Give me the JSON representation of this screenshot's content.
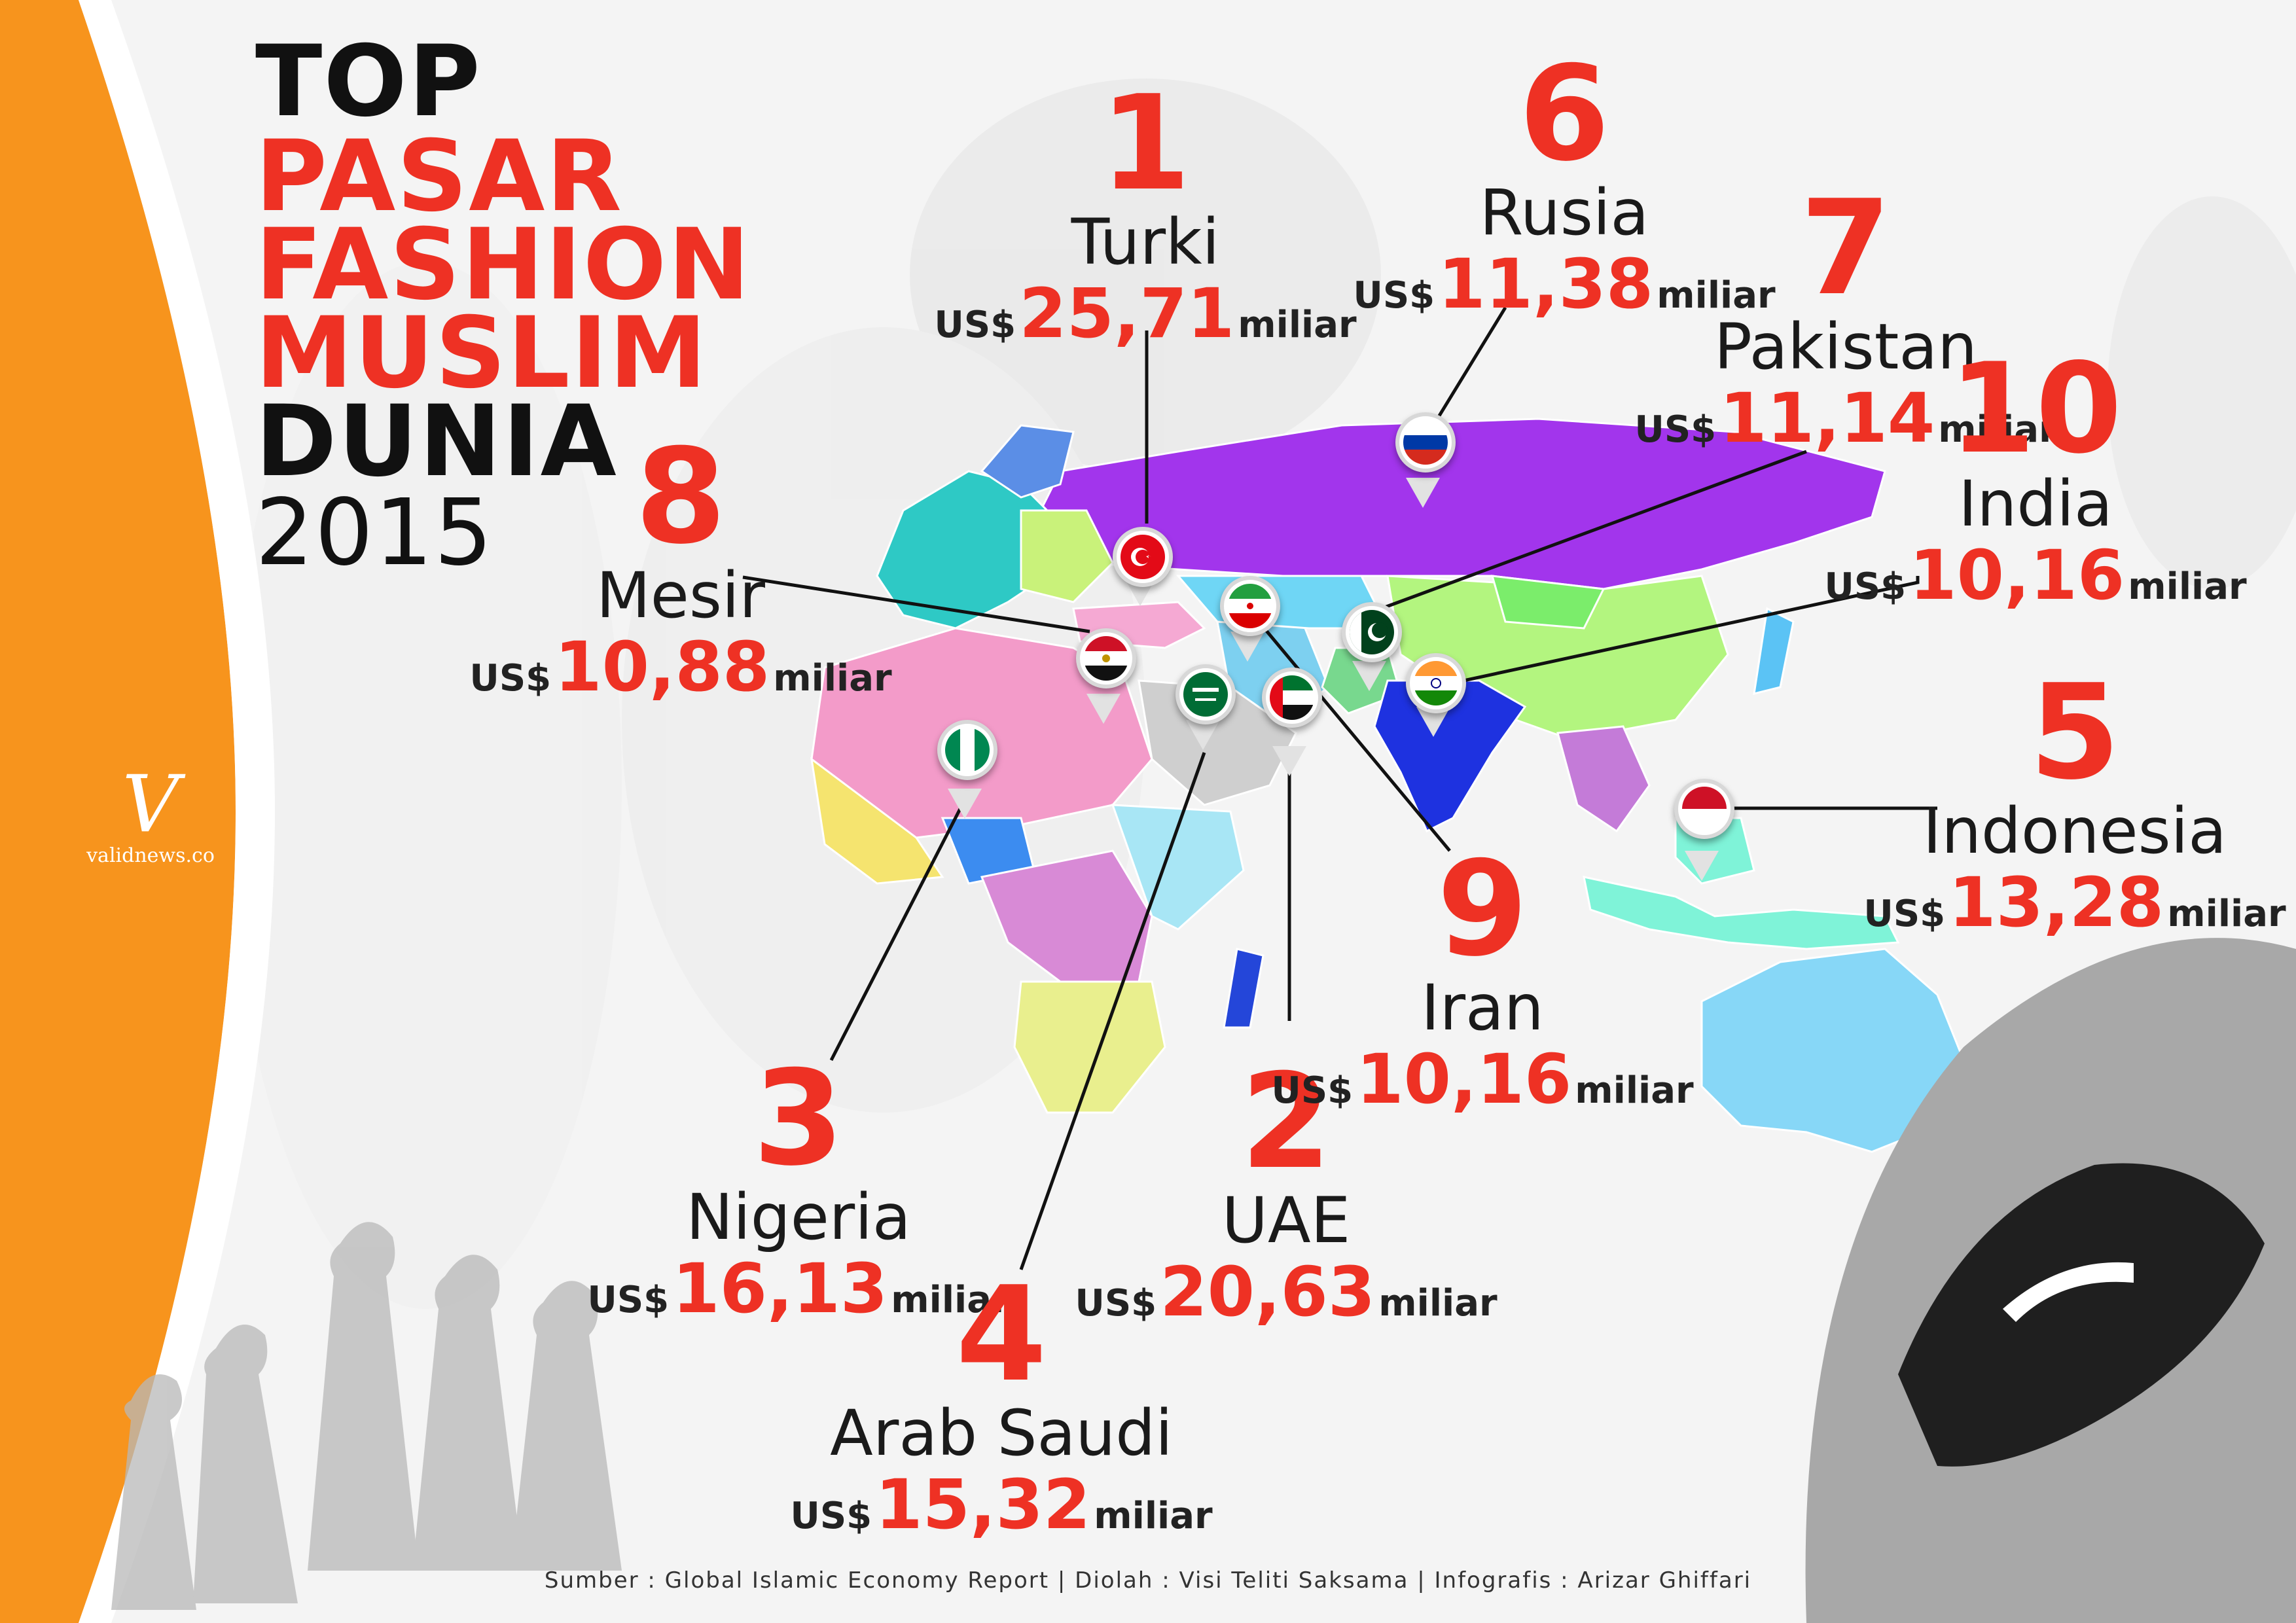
{
  "title": {
    "line1": "TOP",
    "line2": "PASAR",
    "line3": "FASHION",
    "line4": "MUSLIM",
    "line5": "DUNIA",
    "year": "2015"
  },
  "brand": {
    "logo": "V",
    "name": "validnews.co"
  },
  "colors": {
    "accent_red": "#ee3124",
    "side_band_orange": "#f7941d",
    "text_dark": "#222222"
  },
  "markets": [
    {
      "rank": "1",
      "country": "Turki",
      "currency": "US$",
      "value": "25,71",
      "unit": "miliar",
      "flag": "turkey-flag"
    },
    {
      "rank": "2",
      "country": "UAE",
      "currency": "US$",
      "value": "20,63",
      "unit": "miliar",
      "flag": "uae-flag"
    },
    {
      "rank": "3",
      "country": "Nigeria",
      "currency": "US$",
      "value": "16,13",
      "unit": "miliar",
      "flag": "nigeria-flag"
    },
    {
      "rank": "4",
      "country": "Arab Saudi",
      "currency": "US$",
      "value": "15,32",
      "unit": "miliar",
      "flag": "saudi-arabia-flag"
    },
    {
      "rank": "5",
      "country": "Indonesia",
      "currency": "US$",
      "value": "13,28",
      "unit": "miliar",
      "flag": "indonesia-flag"
    },
    {
      "rank": "6",
      "country": "Rusia",
      "currency": "US$",
      "value": "11,38",
      "unit": "miliar",
      "flag": "russia-flag"
    },
    {
      "rank": "7",
      "country": "Pakistan",
      "currency": "US$",
      "value": "11,14",
      "unit": "miliar",
      "flag": "pakistan-flag"
    },
    {
      "rank": "8",
      "country": "Mesir",
      "currency": "US$",
      "value": "10,88",
      "unit": "miliar",
      "flag": "egypt-flag"
    },
    {
      "rank": "9",
      "country": "Iran",
      "currency": "US$",
      "value": "10,16",
      "unit": "miliar",
      "flag": "iran-flag"
    },
    {
      "rank": "10",
      "country": "India",
      "currency": "US$",
      "value": "10,16",
      "unit": "miliar",
      "flag": "india-flag"
    }
  ],
  "footer": "Sumber : Global Islamic Economy Report | Diolah : Visi Teliti Saksama | Infografis : Arizar Ghiffari"
}
